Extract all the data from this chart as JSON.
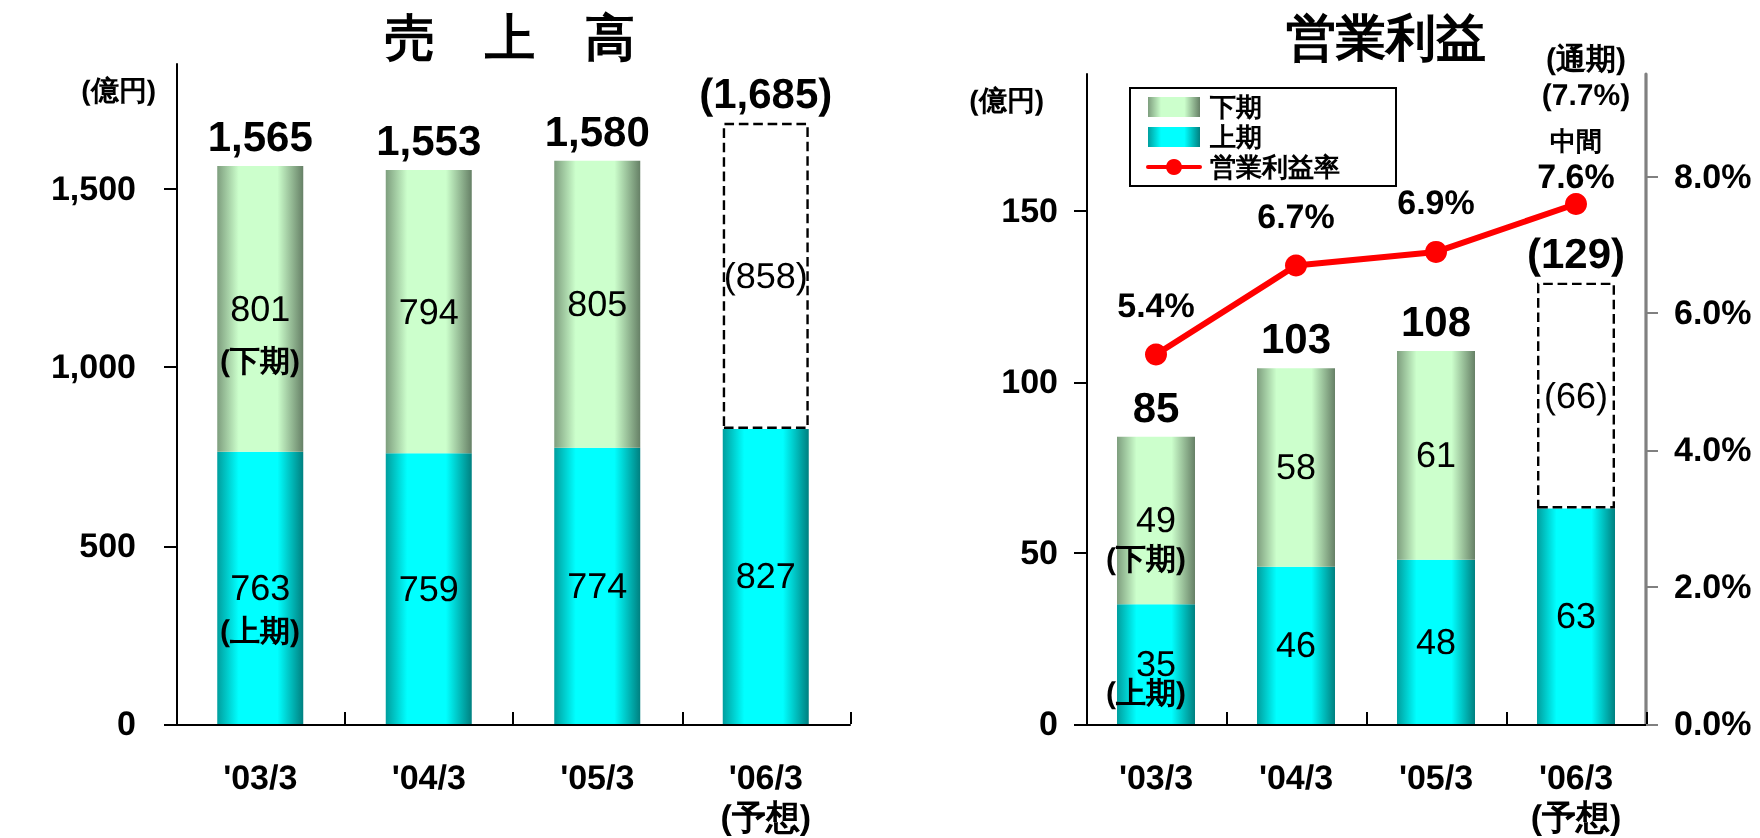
{
  "chart_data": [
    {
      "type": "bar",
      "title": "売　上　高",
      "ylabel": "(億円)",
      "categories": [
        "'03/3",
        "'04/3",
        "'05/3",
        "'06/3\n(予想)"
      ],
      "stacked": true,
      "series": [
        {
          "color": "#00ffff",
          "values": [
            763,
            759,
            774,
            827
          ],
          "value_labels": [
            "763",
            "759",
            "774",
            "827"
          ]
        },
        {
          "color": "#ccffcc",
          "values": [
            801,
            794,
            805,
            null
          ],
          "value_labels": [
            "801",
            "794",
            "805",
            null
          ]
        },
        {
          "color": "#ffffff",
          "line_style": "dashed",
          "values": [
            null,
            null,
            null,
            858
          ],
          "value_labels": [
            null,
            null,
            null,
            "(858)"
          ]
        }
      ],
      "totals": [
        "1,565",
        "1,553",
        "1,580",
        "(1,685)"
      ],
      "ylim": [
        0,
        1850
      ],
      "yticks": [
        0,
        500,
        {
          "value": 1000,
          "label": "1,000"
        },
        {
          "value": 1500,
          "label": "1,500"
        }
      ],
      "annotations": [
        "(下期)",
        "(上期)"
      ]
    },
    {
      "type": "bar",
      "title": "営業利益",
      "ylabel": "(億円)",
      "categories": [
        "'03/3",
        "'04/3",
        "'05/3",
        "'06/3\n(予想)"
      ],
      "stacked": true,
      "series": [
        {
          "name": "上期",
          "color": "#00ffff",
          "values": [
            35,
            46,
            48,
            63
          ],
          "value_labels": [
            "35",
            "46",
            "48",
            "63"
          ]
        },
        {
          "name": "下期",
          "color": "#ccffcc",
          "values": [
            49,
            58,
            61,
            null
          ],
          "value_labels": [
            "49",
            "58",
            "61",
            null
          ]
        },
        {
          "color": "#ffffff",
          "line_style": "dashed",
          "values": [
            null,
            null,
            null,
            66
          ],
          "value_labels": [
            null,
            null,
            null,
            "(66)"
          ]
        },
        {
          "name": "営業利益率",
          "type": "line",
          "axis": "y2",
          "color": "#ff0000",
          "values": [
            5.4,
            6.7,
            6.9,
            7.6
          ],
          "value_labels": [
            "5.4%",
            "6.7%",
            "6.9%",
            "中間\n7.6%"
          ]
        }
      ],
      "totals": [
        "85",
        "103",
        "108",
        "(129)"
      ],
      "ylim": [
        0,
        190
      ],
      "yticks": [
        0,
        50,
        100,
        150
      ],
      "y2lim": [
        0,
        9.5
      ],
      "y2ticks": [
        {
          "value": 0,
          "label": "0.0%"
        },
        {
          "value": 2,
          "label": "2.0%"
        },
        {
          "value": 4,
          "label": "4.0%"
        },
        {
          "value": 6,
          "label": "6.0%"
        },
        {
          "value": 8,
          "label": "8.0%"
        }
      ],
      "marker": "circle",
      "legend": "top left",
      "annotations": [
        "(下期)",
        "(上期)",
        "(通期)\n(7.7%)"
      ]
    }
  ]
}
